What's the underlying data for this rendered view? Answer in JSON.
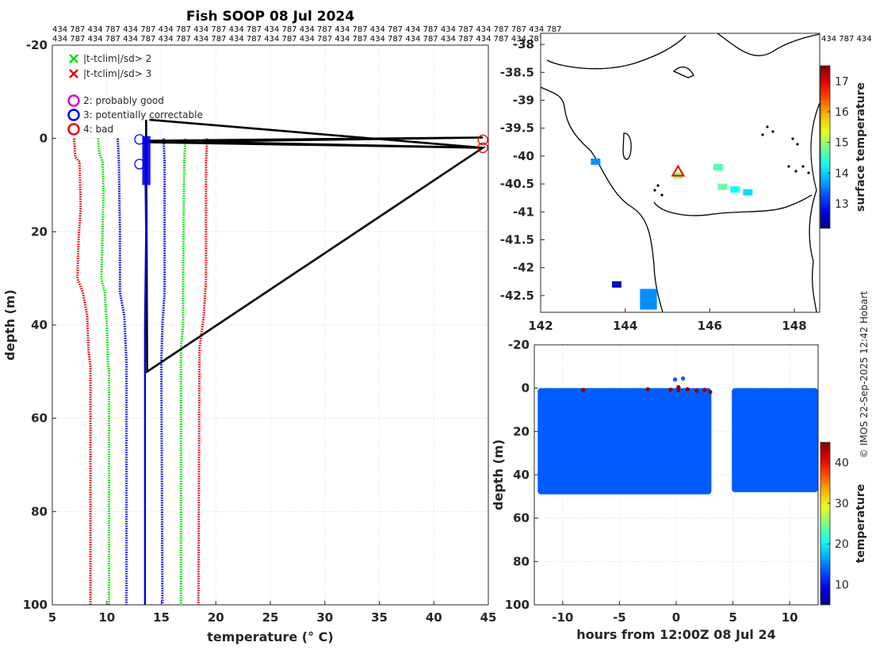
{
  "chart_data": [
    {
      "id": "profile",
      "type": "line",
      "title": "Fish SOOP 08 Jul 2024",
      "xlabel": "temperature (° C)",
      "ylabel": "depth (m)",
      "xlim": [
        5,
        45
      ],
      "ylim": [
        -20,
        100
      ],
      "y_reversed": true,
      "x_ticks": [
        5,
        10,
        15,
        20,
        25,
        30,
        35,
        40,
        45
      ],
      "y_ticks": [
        -20,
        0,
        20,
        40,
        60,
        80,
        100
      ],
      "grid": true,
      "top_label_row1": "434 787 434 787 434 787 434 787 434 787 434 787 434 787 434 787 434 787 434 787 434 787 434 787 434 787 787 434 787",
      "top_label_row2": "434 787 434 787 434 787 434 787 434 787 434 787 434 787 434 787 434 787 434 787 434 787 434 787 434 787 434 787 434 787 434",
      "legend": [
        {
          "marker": "x",
          "color": "#00dd00",
          "label": "|t-tclim|/sd> 2"
        },
        {
          "marker": "x",
          "color": "#ee0000",
          "label": "|t-tclim|/sd> 3"
        },
        {
          "marker": "o",
          "color": "#dd00dd",
          "label": "2: probably good"
        },
        {
          "marker": "o",
          "color": "#0000ee",
          "label": "3: potentially correctable"
        },
        {
          "marker": "o",
          "color": "#ee0000",
          "label": "4: bad"
        }
      ],
      "series": [
        {
          "name": "|t-tclim|/sd> 3",
          "color": "#ee0000",
          "style": "dotted",
          "points": [
            [
              7.0,
              0
            ],
            [
              7.1,
              4
            ],
            [
              7.5,
              5
            ],
            [
              7.6,
              15
            ],
            [
              7.4,
              22
            ],
            [
              7.3,
              30
            ],
            [
              7.8,
              33
            ],
            [
              8.2,
              38
            ],
            [
              8.3,
              45
            ],
            [
              8.5,
              49
            ],
            [
              8.5,
              100
            ]
          ]
        },
        {
          "name": "|t-tclim|/sd> 2",
          "color": "#00dd00",
          "style": "dotted",
          "points": [
            [
              9.2,
              0
            ],
            [
              9.3,
              3
            ],
            [
              9.6,
              5
            ],
            [
              9.7,
              12
            ],
            [
              9.6,
              20
            ],
            [
              9.5,
              30
            ],
            [
              9.8,
              33
            ],
            [
              10.0,
              40
            ],
            [
              10.1,
              48
            ],
            [
              10.2,
              50
            ],
            [
              10.2,
              100
            ]
          ]
        },
        {
          "name": "",
          "color": "#0000ee",
          "style": "dotted",
          "points": [
            [
              11.0,
              0
            ],
            [
              11.1,
              5
            ],
            [
              11.2,
              20
            ],
            [
              11.2,
              33
            ],
            [
              11.6,
              38
            ],
            [
              11.8,
              48
            ],
            [
              11.8,
              100
            ]
          ]
        },
        {
          "name": "",
          "color": "#0000ee",
          "style": "dotted",
          "points": [
            [
              15.2,
              0
            ],
            [
              15.3,
              5
            ],
            [
              15.3,
              33
            ],
            [
              15.1,
              40
            ],
            [
              15.0,
              48
            ],
            [
              15.1,
              100
            ]
          ]
        },
        {
          "name": "|t-tclim|/sd> 2",
          "color": "#00dd00",
          "style": "dotted",
          "points": [
            [
              17.2,
              0
            ],
            [
              17.1,
              5
            ],
            [
              17.0,
              30
            ],
            [
              17.0,
              40
            ],
            [
              16.8,
              45
            ],
            [
              16.8,
              100
            ]
          ]
        },
        {
          "name": "|t-tclim|/sd> 3",
          "color": "#ee0000",
          "style": "dotted",
          "points": [
            [
              19.2,
              0
            ],
            [
              19.1,
              5
            ],
            [
              19.1,
              30
            ],
            [
              18.9,
              38
            ],
            [
              18.5,
              45
            ],
            [
              18.4,
              100
            ]
          ]
        },
        {
          "name": "",
          "color": "#000000",
          "style": "solid",
          "points": [
            [
              13.6,
              -4
            ],
            [
              13.7,
              50
            ],
            [
              44.5,
              2
            ],
            [
              13.8,
              0.5
            ],
            [
              44.5,
              -0.2
            ],
            [
              13.7,
              0.8
            ],
            [
              44.5,
              2
            ],
            [
              13.9,
              -4
            ]
          ]
        },
        {
          "name": "",
          "color": "#0000ee",
          "style": "solid",
          "points": [
            [
              13.5,
              0
            ],
            [
              13.6,
              20
            ],
            [
              13.5,
              40
            ],
            [
              13.5,
              100
            ]
          ]
        }
      ],
      "flagged_points": [
        {
          "x": 44.5,
          "y": 0.3,
          "color": "#ee0000"
        },
        {
          "x": 44.5,
          "y": 2.0,
          "color": "#ee0000"
        },
        {
          "x": 13.0,
          "y": 0.2,
          "color": "#0000ee"
        },
        {
          "x": 13.0,
          "y": 5.5,
          "color": "#0000ee"
        }
      ]
    },
    {
      "id": "map",
      "type": "heatmap",
      "xlim": [
        142,
        148.6
      ],
      "ylim": [
        -42.8,
        -37.8
      ],
      "x_ticks": [
        142,
        144,
        146,
        148
      ],
      "y_ticks": [
        -38,
        -38.5,
        -39,
        -39.5,
        -40,
        -40.5,
        -41,
        -41.5,
        -42,
        -42.5
      ],
      "x_tick_labels": [
        "142",
        "144",
        "146",
        "148"
      ],
      "y_tick_labels": [
        "-38",
        "-38.5",
        "-39",
        "-39.5",
        "-40",
        "-40.5",
        "-41",
        "-41.5",
        "-42",
        "-42.5"
      ],
      "overflow_top_label": "434 787 434",
      "colorbar": {
        "label": "surface temperature",
        "min": 12.2,
        "max": 17.5,
        "ticks": [
          13,
          14,
          15,
          16,
          17
        ]
      },
      "marker": {
        "lon": 145.25,
        "lat": -40.28,
        "symbol": "triangle",
        "color": "#ee0000"
      },
      "points": [
        {
          "lon": 145.25,
          "lat": -40.35,
          "value": 15.0
        },
        {
          "lon": 146.2,
          "lat": -40.2,
          "value": 14.6
        },
        {
          "lon": 146.3,
          "lat": -40.55,
          "value": 14.7
        },
        {
          "lon": 146.6,
          "lat": -40.6,
          "value": 14.2
        },
        {
          "lon": 146.9,
          "lat": -40.65,
          "value": 14.0
        },
        {
          "lon": 144.6,
          "lat": -42.5,
          "value": 13.3
        },
        {
          "lon": 143.8,
          "lat": -42.3,
          "value": 12.5
        },
        {
          "lon": 143.3,
          "lat": -40.1,
          "value": 13.6
        }
      ]
    },
    {
      "id": "section",
      "type": "scatter",
      "xlabel": "hours from 12:00Z 08 Jul 24",
      "ylabel": "depth (m)",
      "xlim": [
        -12.5,
        12.5
      ],
      "ylim": [
        -20,
        100
      ],
      "y_reversed": true,
      "x_ticks": [
        -10,
        -5,
        0,
        5,
        10
      ],
      "y_ticks": [
        -20,
        0,
        20,
        40,
        60,
        80,
        100
      ],
      "colorbar": {
        "label": "temperature",
        "min": 5,
        "max": 45,
        "ticks": [
          10,
          20,
          30,
          40
        ]
      },
      "blocks": [
        {
          "x0": -12.2,
          "x1": 3.1,
          "y0": 0,
          "y1": 49,
          "value": 13.6
        },
        {
          "x0": 4.9,
          "x1": 12.5,
          "y0": 0,
          "y1": 48,
          "value": 13.6
        }
      ],
      "outliers": [
        {
          "x": -0.1,
          "y": -4,
          "value": 13.5
        },
        {
          "x": 0.6,
          "y": -4.5,
          "value": 13.5
        },
        {
          "x": 0.2,
          "y": -0.5,
          "value": 44.5
        },
        {
          "x": 0.2,
          "y": 1.0,
          "value": 44.5
        },
        {
          "x": 1.0,
          "y": 0.5,
          "value": 44.5
        },
        {
          "x": 1.8,
          "y": 1.2,
          "value": 44.5
        },
        {
          "x": 2.5,
          "y": 0.8,
          "value": 44.5
        },
        {
          "x": 3.0,
          "y": 1.8,
          "value": 44.5
        },
        {
          "x": -0.5,
          "y": 0.7,
          "value": 44.5
        },
        {
          "x": -2.5,
          "y": 0.5,
          "value": 44.5
        },
        {
          "x": -8.2,
          "y": 0.8,
          "value": 44.5
        }
      ]
    }
  ],
  "credit": "© IMOS 22-Sep-2025 12:42 Hobart"
}
